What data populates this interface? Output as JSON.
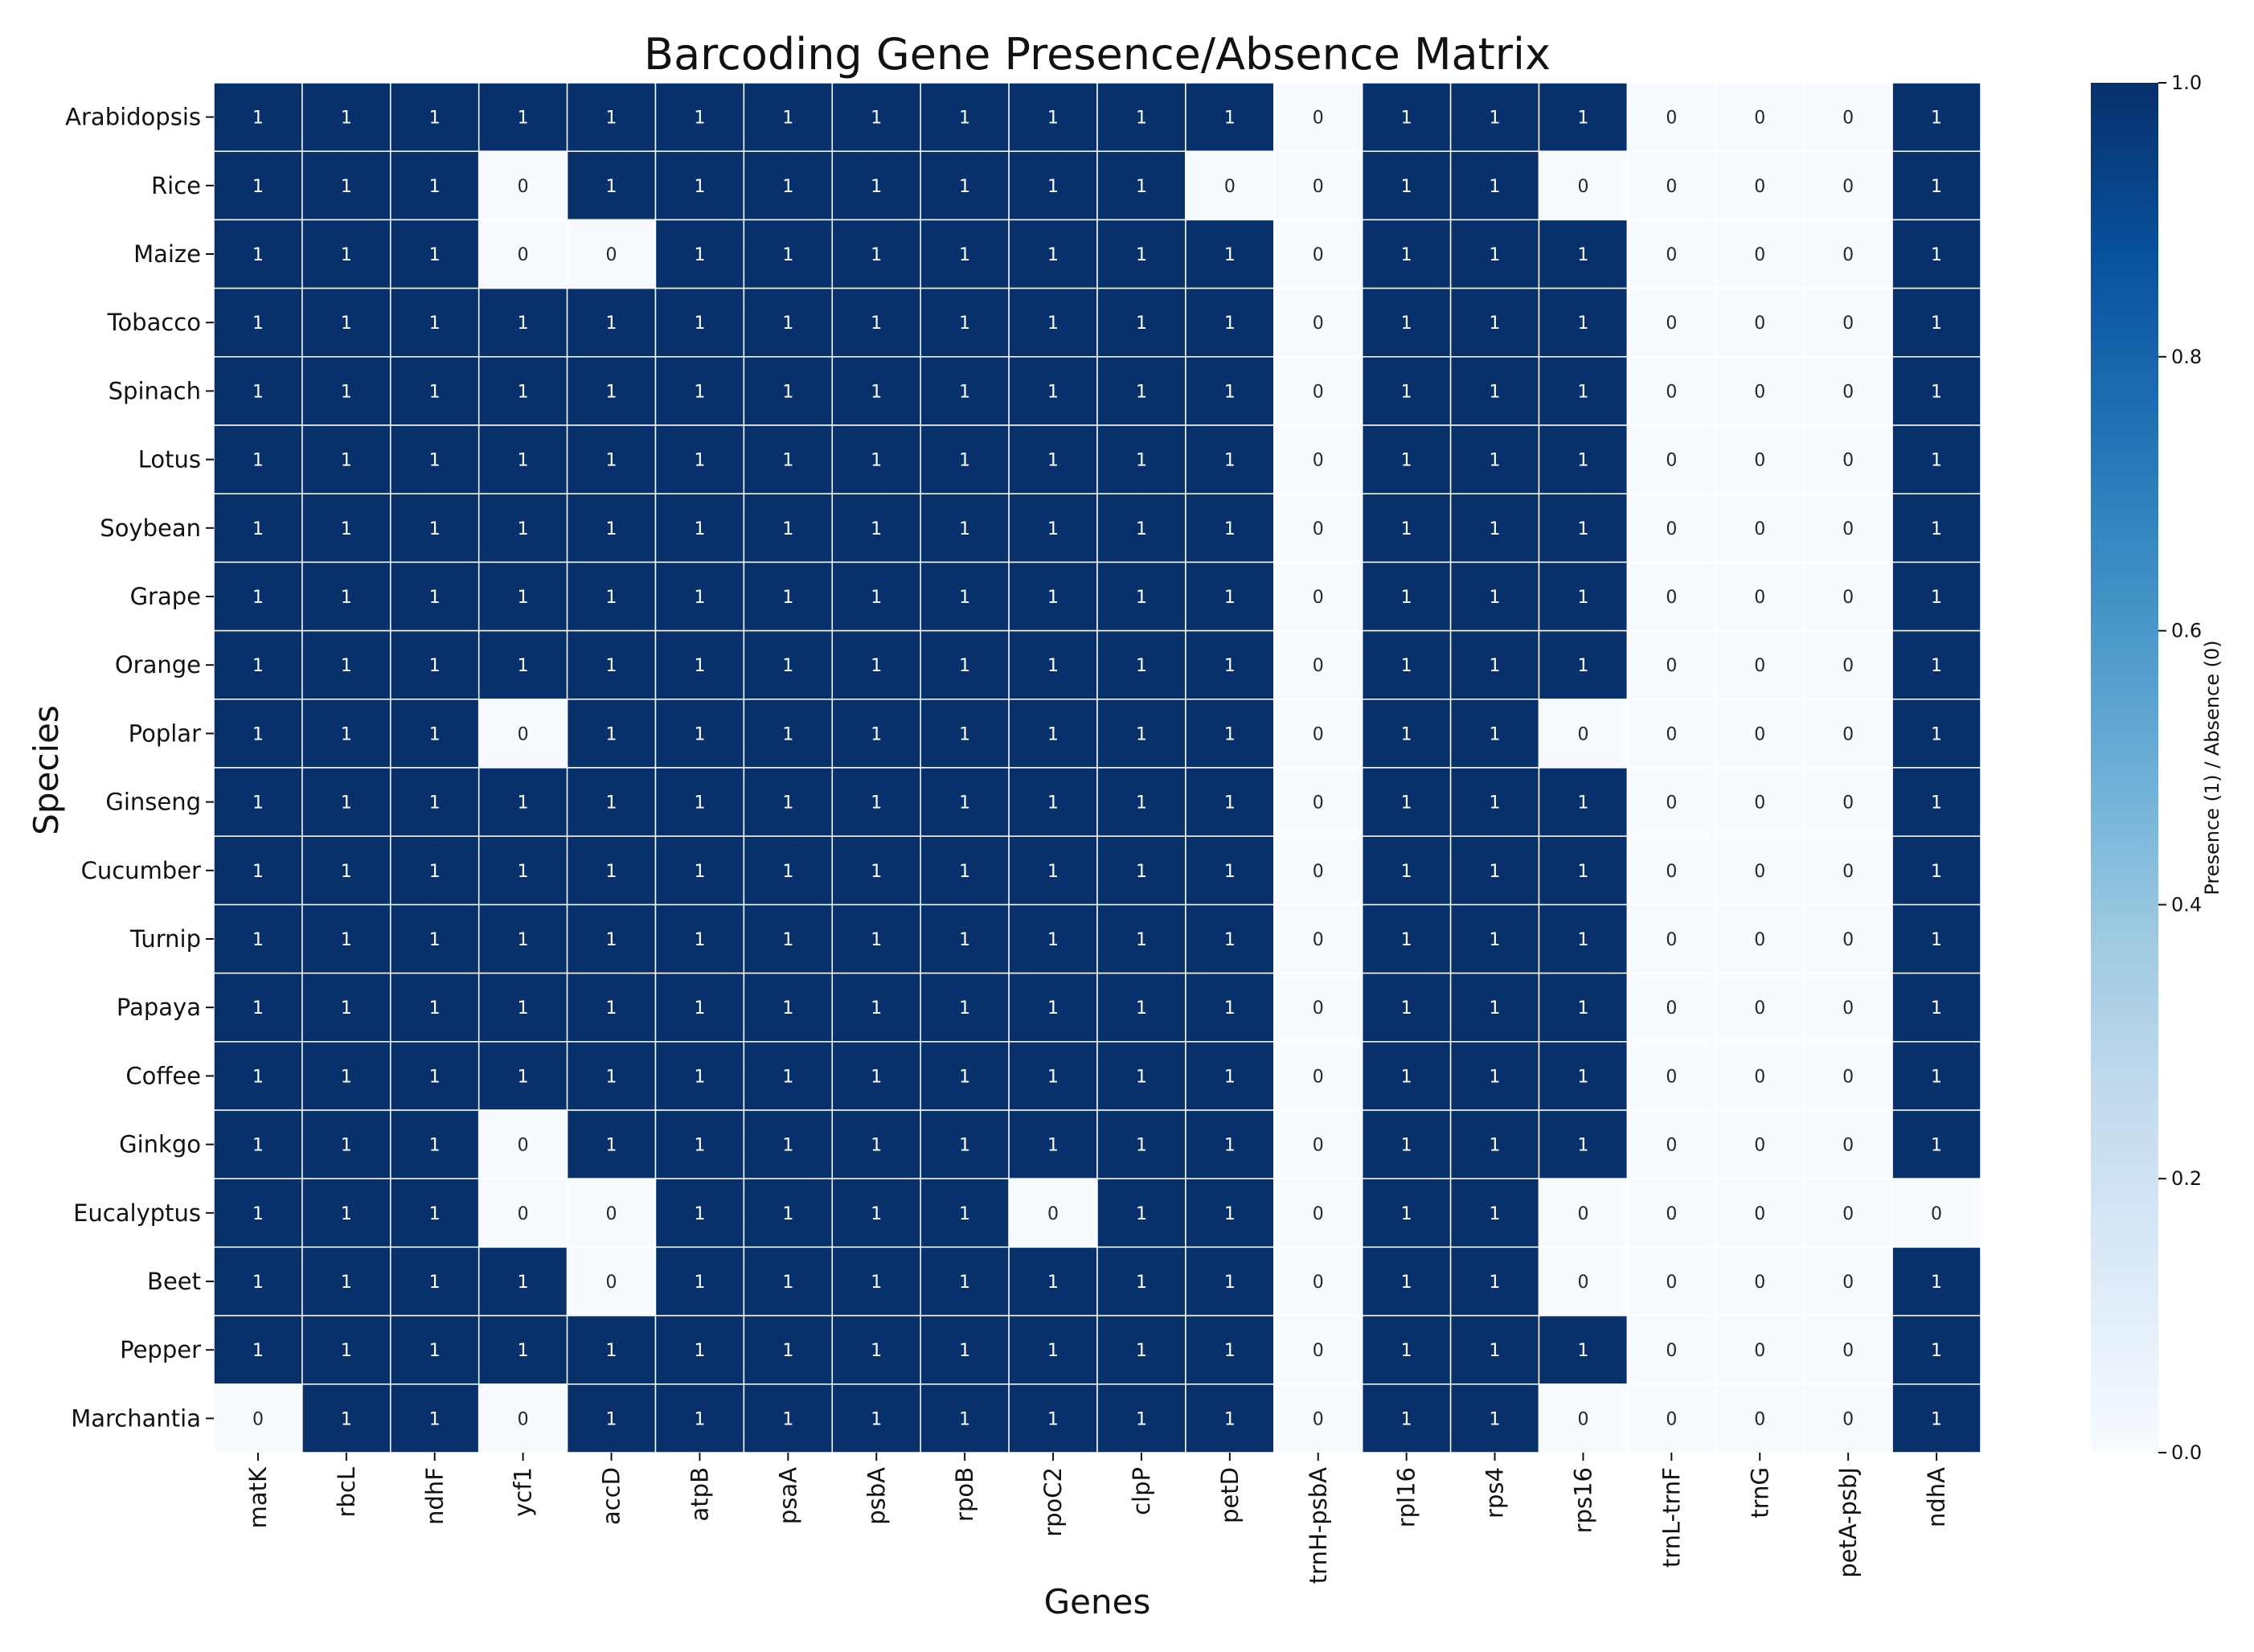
{
  "chart_data": {
    "type": "heatmap",
    "title": "Barcoding Gene Presence/Absence Matrix",
    "xlabel": "Genes",
    "ylabel": "Species",
    "x": [
      "matK",
      "rbcL",
      "ndhF",
      "ycf1",
      "accD",
      "atpB",
      "psaA",
      "psbA",
      "rpoB",
      "rpoC2",
      "clpP",
      "petD",
      "trnH-psbA",
      "rpl16",
      "rps4",
      "rps16",
      "trnL-trnF",
      "trnG",
      "petA-psbJ",
      "ndhA"
    ],
    "y": [
      "Arabidopsis",
      "Rice",
      "Maize",
      "Tobacco",
      "Spinach",
      "Lotus",
      "Soybean",
      "Grape",
      "Orange",
      "Poplar",
      "Ginseng",
      "Cucumber",
      "Turnip",
      "Papaya",
      "Coffee",
      "Ginkgo",
      "Eucalyptus",
      "Beet",
      "Pepper",
      "Marchantia"
    ],
    "values": [
      [
        1,
        1,
        1,
        1,
        1,
        1,
        1,
        1,
        1,
        1,
        1,
        1,
        0,
        1,
        1,
        1,
        0,
        0,
        0,
        1
      ],
      [
        1,
        1,
        1,
        0,
        1,
        1,
        1,
        1,
        1,
        1,
        1,
        0,
        0,
        1,
        1,
        0,
        0,
        0,
        0,
        1
      ],
      [
        1,
        1,
        1,
        0,
        0,
        1,
        1,
        1,
        1,
        1,
        1,
        1,
        0,
        1,
        1,
        1,
        0,
        0,
        0,
        1
      ],
      [
        1,
        1,
        1,
        1,
        1,
        1,
        1,
        1,
        1,
        1,
        1,
        1,
        0,
        1,
        1,
        1,
        0,
        0,
        0,
        1
      ],
      [
        1,
        1,
        1,
        1,
        1,
        1,
        1,
        1,
        1,
        1,
        1,
        1,
        0,
        1,
        1,
        1,
        0,
        0,
        0,
        1
      ],
      [
        1,
        1,
        1,
        1,
        1,
        1,
        1,
        1,
        1,
        1,
        1,
        1,
        0,
        1,
        1,
        1,
        0,
        0,
        0,
        1
      ],
      [
        1,
        1,
        1,
        1,
        1,
        1,
        1,
        1,
        1,
        1,
        1,
        1,
        0,
        1,
        1,
        1,
        0,
        0,
        0,
        1
      ],
      [
        1,
        1,
        1,
        1,
        1,
        1,
        1,
        1,
        1,
        1,
        1,
        1,
        0,
        1,
        1,
        1,
        0,
        0,
        0,
        1
      ],
      [
        1,
        1,
        1,
        1,
        1,
        1,
        1,
        1,
        1,
        1,
        1,
        1,
        0,
        1,
        1,
        1,
        0,
        0,
        0,
        1
      ],
      [
        1,
        1,
        1,
        0,
        1,
        1,
        1,
        1,
        1,
        1,
        1,
        1,
        0,
        1,
        1,
        0,
        0,
        0,
        0,
        1
      ],
      [
        1,
        1,
        1,
        1,
        1,
        1,
        1,
        1,
        1,
        1,
        1,
        1,
        0,
        1,
        1,
        1,
        0,
        0,
        0,
        1
      ],
      [
        1,
        1,
        1,
        1,
        1,
        1,
        1,
        1,
        1,
        1,
        1,
        1,
        0,
        1,
        1,
        1,
        0,
        0,
        0,
        1
      ],
      [
        1,
        1,
        1,
        1,
        1,
        1,
        1,
        1,
        1,
        1,
        1,
        1,
        0,
        1,
        1,
        1,
        0,
        0,
        0,
        1
      ],
      [
        1,
        1,
        1,
        1,
        1,
        1,
        1,
        1,
        1,
        1,
        1,
        1,
        0,
        1,
        1,
        1,
        0,
        0,
        0,
        1
      ],
      [
        1,
        1,
        1,
        1,
        1,
        1,
        1,
        1,
        1,
        1,
        1,
        1,
        0,
        1,
        1,
        1,
        0,
        0,
        0,
        1
      ],
      [
        1,
        1,
        1,
        0,
        1,
        1,
        1,
        1,
        1,
        1,
        1,
        1,
        0,
        1,
        1,
        1,
        0,
        0,
        0,
        1
      ],
      [
        1,
        1,
        1,
        0,
        0,
        1,
        1,
        1,
        1,
        0,
        1,
        1,
        0,
        1,
        1,
        0,
        0,
        0,
        0,
        0
      ],
      [
        1,
        1,
        1,
        1,
        0,
        1,
        1,
        1,
        1,
        1,
        1,
        1,
        0,
        1,
        1,
        0,
        0,
        0,
        0,
        1
      ],
      [
        1,
        1,
        1,
        1,
        1,
        1,
        1,
        1,
        1,
        1,
        1,
        1,
        0,
        1,
        1,
        1,
        0,
        0,
        0,
        1
      ],
      [
        0,
        1,
        1,
        0,
        1,
        1,
        1,
        1,
        1,
        1,
        1,
        1,
        0,
        1,
        1,
        0,
        0,
        0,
        0,
        1
      ]
    ],
    "vmin": 0,
    "vmax": 1,
    "annotations": true,
    "colormap": "Blues",
    "colors": {
      "low": "#f7fbff",
      "high": "#08306b",
      "cell_border": "#ffffff",
      "text_on_dark": "#ffffff",
      "text_on_light": "#262626"
    },
    "colorbar": {
      "label": "Presence (1) / Absence (0)",
      "ticks": [
        "0.0",
        "0.2",
        "0.4",
        "0.6",
        "0.8",
        "1.0"
      ],
      "position": "right"
    },
    "grid": false
  }
}
